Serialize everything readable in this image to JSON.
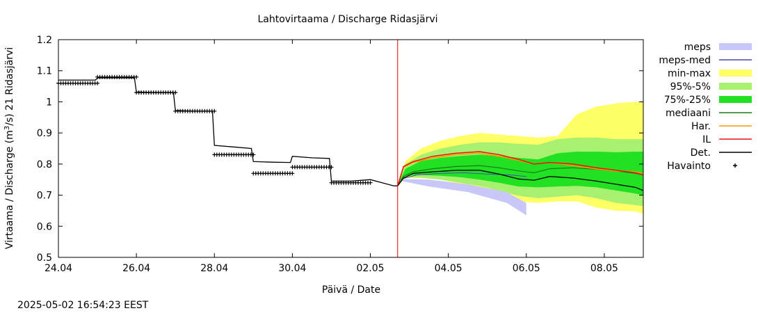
{
  "chart_data": {
    "type": "line",
    "title": "Lahtovirtaama / Discharge  Ridasjärvi",
    "xlabel": "Päivä / Date",
    "ylabel_parts": [
      "Virtaama / Discharge (m",
      "3",
      "/s)  21 Ridasjärvi"
    ],
    "timestamp": "2025-05-02 16:54:23 EEST",
    "x_range_days": [
      0,
      15
    ],
    "ylim": [
      0.5,
      1.2
    ],
    "now_day": 8.7,
    "x_ticks": [
      {
        "day": 0,
        "label": "24.04"
      },
      {
        "day": 2,
        "label": "26.04"
      },
      {
        "day": 4,
        "label": "28.04"
      },
      {
        "day": 6,
        "label": "30.04"
      },
      {
        "day": 8,
        "label": "02.05"
      },
      {
        "day": 10,
        "label": "04.05"
      },
      {
        "day": 12,
        "label": "06.05"
      },
      {
        "day": 14,
        "label": "08.05"
      }
    ],
    "y_ticks": [
      {
        "v": 0.5,
        "label": "0.5"
      },
      {
        "v": 0.6,
        "label": "0.6"
      },
      {
        "v": 0.7,
        "label": "0.7"
      },
      {
        "v": 0.8,
        "label": "0.8"
      },
      {
        "v": 0.9,
        "label": "0.9"
      },
      {
        "v": 1.0,
        "label": "1"
      },
      {
        "v": 1.1,
        "label": "1.1"
      },
      {
        "v": 1.2,
        "label": "1.2"
      }
    ],
    "legend": [
      {
        "label": "meps",
        "kind": "box",
        "color": "#c8c8f8"
      },
      {
        "label": "meps-med",
        "kind": "line",
        "color": "#4a4ab8"
      },
      {
        "label": "min-max",
        "kind": "box",
        "color": "#ffff66"
      },
      {
        "label": "95%-5%",
        "kind": "box",
        "color": "#a8f070"
      },
      {
        "label": "75%-25%",
        "kind": "box",
        "color": "#22e022"
      },
      {
        "label": "mediaani",
        "kind": "line",
        "color": "#1a7a1a"
      },
      {
        "label": "Har.",
        "kind": "line",
        "color": "#ff9900"
      },
      {
        "label": "IL",
        "kind": "line",
        "color": "#ee1111"
      },
      {
        "label": "Det.",
        "kind": "line",
        "color": "#000000"
      },
      {
        "label": "Havainto",
        "kind": "plus",
        "color": "#000000"
      }
    ],
    "series": {
      "meps_band": {
        "x": [
          8.8,
          9.5,
          10.5,
          11.5,
          12.0
        ],
        "upper": [
          0.752,
          0.75,
          0.735,
          0.71,
          0.675
        ],
        "lower": [
          0.745,
          0.728,
          0.71,
          0.675,
          0.635
        ]
      },
      "minmax_band": {
        "x": [
          8.7,
          8.9,
          9.3,
          9.8,
          10.3,
          10.8,
          11.3,
          11.8,
          12.3,
          12.8,
          13.3,
          13.8,
          14.3,
          14.8,
          15.0
        ],
        "upper": [
          0.735,
          0.81,
          0.85,
          0.875,
          0.89,
          0.9,
          0.895,
          0.89,
          0.885,
          0.89,
          0.96,
          0.985,
          0.995,
          1.0,
          1.0
        ],
        "lower": [
          0.73,
          0.755,
          0.755,
          0.75,
          0.735,
          0.72,
          0.71,
          0.68,
          0.675,
          0.68,
          0.68,
          0.66,
          0.65,
          0.648,
          0.64
        ]
      },
      "p95_band": {
        "x": [
          8.7,
          8.9,
          9.3,
          9.8,
          10.3,
          10.8,
          11.3,
          11.8,
          12.3,
          12.8,
          13.3,
          13.8,
          14.3,
          14.8,
          15.0
        ],
        "upper": [
          0.735,
          0.8,
          0.83,
          0.85,
          0.862,
          0.87,
          0.87,
          0.865,
          0.862,
          0.88,
          0.885,
          0.885,
          0.88,
          0.88,
          0.88
        ],
        "lower": [
          0.73,
          0.758,
          0.756,
          0.75,
          0.74,
          0.73,
          0.715,
          0.698,
          0.69,
          0.695,
          0.7,
          0.69,
          0.675,
          0.668,
          0.665
        ]
      },
      "p75_band": {
        "x": [
          8.7,
          8.9,
          9.3,
          9.8,
          10.3,
          10.8,
          11.3,
          11.8,
          12.3,
          12.8,
          13.3,
          13.8,
          14.3,
          14.8,
          15.0
        ],
        "upper": [
          0.735,
          0.785,
          0.81,
          0.82,
          0.826,
          0.83,
          0.826,
          0.82,
          0.815,
          0.835,
          0.84,
          0.84,
          0.838,
          0.84,
          0.84
        ],
        "lower": [
          0.73,
          0.762,
          0.765,
          0.762,
          0.758,
          0.75,
          0.74,
          0.728,
          0.725,
          0.728,
          0.73,
          0.725,
          0.715,
          0.705,
          0.7
        ]
      },
      "meps_med": {
        "x": [
          8.8,
          9.2,
          9.8,
          10.4,
          11.0,
          11.6,
          12.0
        ],
        "y": [
          0.752,
          0.765,
          0.77,
          0.772,
          0.768,
          0.765,
          0.76
        ]
      },
      "mediaani": {
        "x": [
          8.7,
          8.85,
          9.1,
          9.6,
          10.2,
          10.8,
          11.3,
          11.8,
          12.2,
          12.6,
          13.2,
          13.8,
          14.3,
          14.8,
          15.0
        ],
        "y": [
          0.73,
          0.76,
          0.775,
          0.785,
          0.792,
          0.795,
          0.788,
          0.778,
          0.772,
          0.785,
          0.788,
          0.783,
          0.778,
          0.77,
          0.765
        ]
      },
      "har": {
        "x": [
          8.7,
          8.85,
          9.1,
          9.6,
          10.2,
          10.8,
          11.3,
          11.8,
          12.2,
          12.6,
          13.2,
          13.8,
          14.3,
          14.8,
          15.0
        ],
        "y": [
          0.73,
          0.79,
          0.805,
          0.82,
          0.83,
          0.835,
          0.825,
          0.812,
          0.8,
          0.805,
          0.795,
          0.784,
          0.778,
          0.775,
          0.77
        ]
      },
      "il": {
        "x": [
          8.7,
          8.85,
          9.1,
          9.6,
          10.2,
          10.8,
          11.3,
          11.8,
          12.2,
          12.6,
          13.2,
          13.8,
          14.3,
          14.8,
          15.0
        ],
        "y": [
          0.73,
          0.792,
          0.808,
          0.825,
          0.835,
          0.84,
          0.83,
          0.815,
          0.8,
          0.805,
          0.8,
          0.788,
          0.78,
          0.772,
          0.765
        ]
      },
      "det": {
        "x": [
          0.0,
          0.5,
          0.95,
          1.0,
          1.5,
          1.95,
          2.0,
          2.5,
          2.95,
          3.0,
          3.5,
          3.95,
          4.0,
          4.5,
          4.95,
          5.0,
          5.5,
          5.95,
          6.0,
          6.5,
          6.95,
          7.0,
          7.5,
          8.0,
          8.3,
          8.6,
          8.7,
          8.85,
          9.1,
          9.6,
          10.2,
          10.8,
          11.3,
          11.8,
          12.2,
          12.6,
          13.2,
          13.8,
          14.3,
          14.8,
          15.0
        ],
        "y": [
          1.07,
          1.07,
          1.07,
          1.077,
          1.077,
          1.077,
          1.032,
          1.03,
          1.03,
          0.972,
          0.97,
          0.97,
          0.86,
          0.855,
          0.85,
          0.808,
          0.806,
          0.805,
          0.825,
          0.82,
          0.818,
          0.745,
          0.745,
          0.75,
          0.74,
          0.73,
          0.73,
          0.755,
          0.77,
          0.775,
          0.78,
          0.78,
          0.768,
          0.752,
          0.748,
          0.76,
          0.755,
          0.745,
          0.735,
          0.725,
          0.715
        ]
      },
      "havainto": [
        {
          "x0": 0.0,
          "x1": 1.0,
          "y": 1.06
        },
        {
          "x0": 1.0,
          "x1": 2.0,
          "y": 1.08
        },
        {
          "x0": 2.0,
          "x1": 3.0,
          "y": 1.03
        },
        {
          "x0": 3.0,
          "x1": 4.0,
          "y": 0.97
        },
        {
          "x0": 4.0,
          "x1": 5.0,
          "y": 0.83
        },
        {
          "x0": 5.0,
          "x1": 6.0,
          "y": 0.77
        },
        {
          "x0": 6.0,
          "x1": 7.0,
          "y": 0.79
        },
        {
          "x0": 7.0,
          "x1": 8.0,
          "y": 0.74
        }
      ]
    }
  }
}
